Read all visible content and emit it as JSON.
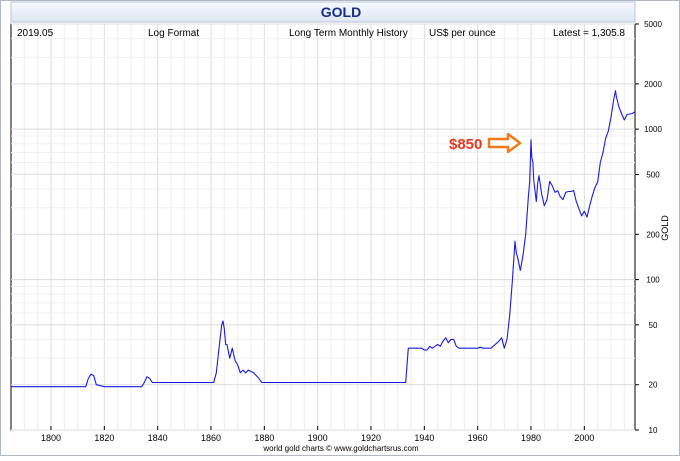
{
  "chart_data": {
    "type": "line",
    "title": "GOLD",
    "subtitles": [
      "2019.05",
      "Log Format",
      "Long Term Monthly History",
      "US$ per ounce",
      "Latest = 1,305.8"
    ],
    "ylabel": "GOLD",
    "footer": "world gold charts © www.goldchartsrus.com",
    "annotation": {
      "label": "$850",
      "x": 1980,
      "y": 850
    },
    "yscale": "log",
    "ylim": [
      10,
      5000
    ],
    "xlim": [
      1785,
      2019
    ],
    "x_ticks": [
      1800,
      1820,
      1840,
      1860,
      1880,
      1900,
      1920,
      1940,
      1960,
      1980,
      2000
    ],
    "y_ticks": [
      10,
      20,
      50,
      100,
      200,
      500,
      1000,
      2000,
      5000
    ],
    "grid": true,
    "series": [
      {
        "color": "#1a1ae6",
        "points": [
          [
            1785,
            19.4
          ],
          [
            1800,
            19.4
          ],
          [
            1813,
            19.4
          ],
          [
            1814,
            22
          ],
          [
            1815,
            23.5
          ],
          [
            1816,
            23
          ],
          [
            1817,
            20
          ],
          [
            1820,
            19.4
          ],
          [
            1834,
            19.4
          ],
          [
            1835,
            20.7
          ],
          [
            1836,
            22.6
          ],
          [
            1837,
            22
          ],
          [
            1838,
            20.7
          ],
          [
            1850,
            20.7
          ],
          [
            1861,
            20.7
          ],
          [
            1862,
            24
          ],
          [
            1863,
            35
          ],
          [
            1864,
            50
          ],
          [
            1864.5,
            53
          ],
          [
            1865,
            47
          ],
          [
            1865.5,
            37
          ],
          [
            1866,
            37
          ],
          [
            1867,
            30
          ],
          [
            1868,
            35
          ],
          [
            1869,
            29
          ],
          [
            1870,
            27
          ],
          [
            1871,
            24
          ],
          [
            1872,
            25
          ],
          [
            1873,
            24
          ],
          [
            1874,
            25
          ],
          [
            1875,
            24.5
          ],
          [
            1876,
            24
          ],
          [
            1877,
            23
          ],
          [
            1878,
            22
          ],
          [
            1879,
            20.7
          ],
          [
            1933,
            20.7
          ],
          [
            1934,
            35
          ],
          [
            1935,
            35
          ],
          [
            1939,
            35
          ],
          [
            1940,
            34
          ],
          [
            1941,
            34
          ],
          [
            1942,
            36
          ],
          [
            1943,
            35
          ],
          [
            1944,
            36
          ],
          [
            1945,
            37
          ],
          [
            1946,
            36
          ],
          [
            1947,
            39
          ],
          [
            1948,
            41
          ],
          [
            1949,
            38
          ],
          [
            1950,
            40
          ],
          [
            1951,
            40
          ],
          [
            1952,
            36
          ],
          [
            1953,
            35
          ],
          [
            1955,
            35
          ],
          [
            1960,
            35
          ],
          [
            1961,
            35.5
          ],
          [
            1962,
            35
          ],
          [
            1965,
            35
          ],
          [
            1968,
            39
          ],
          [
            1969,
            41
          ],
          [
            1970,
            35
          ],
          [
            1971,
            40
          ],
          [
            1972,
            58
          ],
          [
            1973,
            97
          ],
          [
            1974,
            180
          ],
          [
            1974.5,
            150
          ],
          [
            1975,
            140
          ],
          [
            1976,
            115
          ],
          [
            1977,
            145
          ],
          [
            1978,
            200
          ],
          [
            1979,
            350
          ],
          [
            1979.5,
            450
          ],
          [
            1980,
            850
          ],
          [
            1980.3,
            650
          ],
          [
            1980.7,
            600
          ],
          [
            1981,
            460
          ],
          [
            1982,
            330
          ],
          [
            1982.5,
            440
          ],
          [
            1983,
            490
          ],
          [
            1984,
            370
          ],
          [
            1985,
            310
          ],
          [
            1986,
            340
          ],
          [
            1987,
            450
          ],
          [
            1988,
            420
          ],
          [
            1989,
            380
          ],
          [
            1990,
            390
          ],
          [
            1991,
            355
          ],
          [
            1992,
            340
          ],
          [
            1993,
            380
          ],
          [
            1994,
            385
          ],
          [
            1995,
            385
          ],
          [
            1996,
            390
          ],
          [
            1997,
            330
          ],
          [
            1998,
            295
          ],
          [
            1999,
            265
          ],
          [
            2000,
            285
          ],
          [
            2001,
            260
          ],
          [
            2002,
            310
          ],
          [
            2003,
            360
          ],
          [
            2004,
            410
          ],
          [
            2005,
            445
          ],
          [
            2006,
            600
          ],
          [
            2007,
            700
          ],
          [
            2008,
            870
          ],
          [
            2009,
            970
          ],
          [
            2010,
            1200
          ],
          [
            2011,
            1570
          ],
          [
            2011.7,
            1800
          ],
          [
            2012,
            1650
          ],
          [
            2013,
            1400
          ],
          [
            2014,
            1260
          ],
          [
            2015,
            1150
          ],
          [
            2016,
            1250
          ],
          [
            2017,
            1260
          ],
          [
            2018,
            1270
          ],
          [
            2019,
            1305.8
          ]
        ]
      }
    ]
  }
}
